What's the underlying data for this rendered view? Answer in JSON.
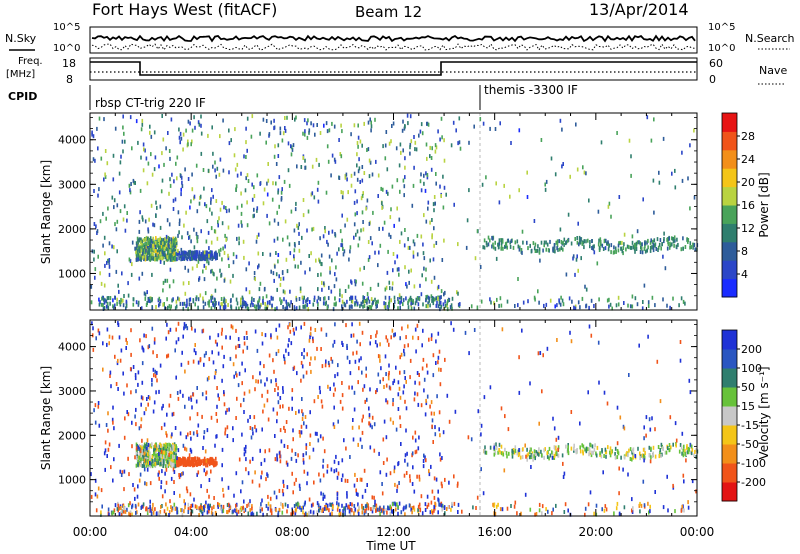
{
  "header": {
    "station": "Fort Hays West (fitACF)",
    "beam": "Beam 12",
    "date": "13/Apr/2014"
  },
  "top_panels": {
    "nsky": {
      "label": "N.Sky",
      "right_label": "N.Search",
      "left_ticks": [
        "10^5",
        "10^0"
      ],
      "right_ticks": [
        "10^5",
        "10^0"
      ]
    },
    "freq": {
      "label_line1": "Freq.",
      "label_line2": "[MHz]",
      "right_label": "Nave",
      "left_ticks": [
        "18",
        "8"
      ],
      "right_ticks": [
        "60",
        "0"
      ]
    },
    "cpid": {
      "label": "CPID",
      "programs": [
        {
          "name": "rbsp CT-trig 220 IF",
          "start_hour": 0
        },
        {
          "name": "themis -3300 IF",
          "start_hour": 15.75
        }
      ]
    }
  },
  "chart_data": [
    {
      "type": "scatter",
      "title": "",
      "xlabel": "Time UT",
      "ylabel": "Slant Range [km]",
      "xlim": [
        0,
        24
      ],
      "ylim": [
        180,
        4600
      ],
      "x_ticks": [
        "00:00",
        "04:00",
        "08:00",
        "12:00",
        "16:00",
        "20:00",
        "00:00"
      ],
      "y_ticks": [
        "1000",
        "2000",
        "3000",
        "4000"
      ],
      "colorbar": {
        "label": "Power [dB]",
        "range": [
          0,
          32
        ],
        "ticks": [
          "4",
          "8",
          "12",
          "16",
          "20",
          "24",
          "28"
        ],
        "colors": [
          "#1a2cff",
          "#2b46c8",
          "#2e5c9a",
          "#2f7e6e",
          "#49a35a",
          "#b9d341",
          "#f4c518",
          "#f28f1a",
          "#f0541a",
          "#e71414"
        ]
      },
      "features": [
        {
          "name": "near-range cluster",
          "x_range": [
            1.8,
            3.4
          ],
          "y_range": [
            1300,
            1800
          ],
          "value_range": [
            8,
            20
          ]
        },
        {
          "name": "extended echoes",
          "x_range": [
            3.4,
            5.0
          ],
          "y_range": [
            1320,
            1480
          ],
          "value_range": [
            4,
            10
          ]
        },
        {
          "name": "evening band",
          "x_range": [
            15.5,
            24
          ],
          "y_range": [
            1500,
            1750
          ],
          "value_range": [
            8,
            16
          ]
        }
      ]
    },
    {
      "type": "scatter",
      "title": "",
      "xlabel": "Time UT",
      "ylabel": "Slant Range [km]",
      "xlim": [
        0,
        24
      ],
      "ylim": [
        180,
        4600
      ],
      "x_ticks": [
        "00:00",
        "04:00",
        "08:00",
        "12:00",
        "16:00",
        "20:00",
        "00:00"
      ],
      "y_ticks": [
        "1000",
        "2000",
        "3000",
        "4000"
      ],
      "colorbar": {
        "label": "Velocity [m s⁻¹]",
        "ticks": [
          "200",
          "100",
          "50",
          "15",
          "-15",
          "-50",
          "-100",
          "-200"
        ],
        "colors": [
          "#1f32d6",
          "#2a56c1",
          "#2f7e6e",
          "#67c23a",
          "#c8c8c8",
          "#f4c518",
          "#f28f1a",
          "#f0541a",
          "#e31414"
        ]
      },
      "features": [
        {
          "name": "near-range cluster",
          "x_range": [
            1.8,
            3.4
          ],
          "y_range": [
            1300,
            1800
          ],
          "value_range": [
            -50,
            50
          ]
        },
        {
          "name": "extended echoes",
          "x_range": [
            3.4,
            5.0
          ],
          "y_range": [
            1320,
            1480
          ],
          "value_range": [
            -250,
            -150
          ]
        },
        {
          "name": "evening band",
          "x_range": [
            15.5,
            24
          ],
          "y_range": [
            1500,
            1750
          ],
          "value_range": [
            -50,
            50
          ]
        }
      ]
    }
  ]
}
